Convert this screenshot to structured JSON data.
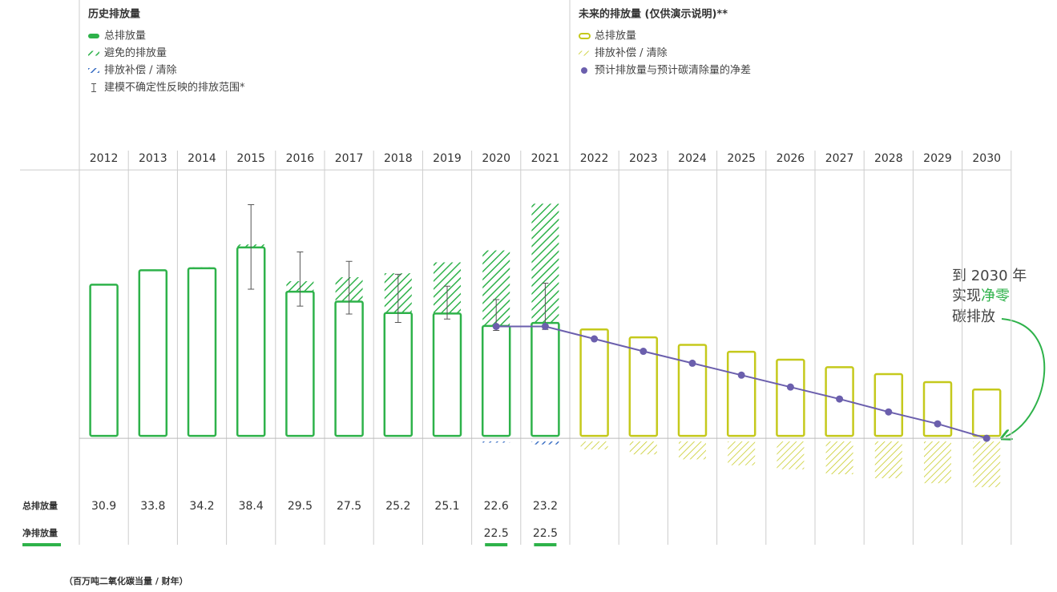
{
  "chart_data": {
    "type": "bar",
    "categories": [
      "2012",
      "2013",
      "2014",
      "2015",
      "2016",
      "2017",
      "2018",
      "2019",
      "2020",
      "2021",
      "2022",
      "2023",
      "2024",
      "2025",
      "2026",
      "2027",
      "2028",
      "2029",
      "2030"
    ],
    "ylim": [
      -10,
      54
    ],
    "legend_groups": [
      {
        "title": "历史排放量",
        "series": [
          0,
          1,
          2,
          3
        ]
      },
      {
        "title": "未来的排放量 (仅供演示说明)**",
        "series": [
          4,
          5,
          6
        ]
      }
    ],
    "series": [
      {
        "name": "总排放量",
        "color": "#2eb24a",
        "mark": "outline",
        "values": [
          30.9,
          33.8,
          34.2,
          38.4,
          29.5,
          27.5,
          25.2,
          25.1,
          22.6,
          23.2,
          null,
          null,
          null,
          null,
          null,
          null,
          null,
          null,
          null
        ]
      },
      {
        "name": "避免的排放量",
        "color": "#2eb24a",
        "mark": "hatch-up",
        "values": [
          0.1,
          0.1,
          0.2,
          0.6,
          2.1,
          4.9,
          8.0,
          10.3,
          15.2,
          24.0,
          null,
          null,
          null,
          null,
          null,
          null,
          null,
          null,
          null
        ]
      },
      {
        "name": "排放补偿 / 清除",
        "color": "#3a6fc4",
        "mark": "hatch-down",
        "values": [
          null,
          null,
          null,
          null,
          null,
          null,
          null,
          null,
          0.1,
          0.6,
          null,
          null,
          null,
          null,
          null,
          null,
          null,
          null,
          null
        ]
      },
      {
        "name": "建模不确定性反映的排放范围*",
        "color": "#555555",
        "mark": "range",
        "low": [
          null,
          null,
          null,
          30.0,
          26.6,
          25.0,
          23.3,
          24.0,
          21.7,
          21.9,
          null,
          null,
          null,
          null,
          null,
          null,
          null,
          null,
          null
        ],
        "high": [
          null,
          null,
          null,
          47.0,
          37.5,
          35.6,
          33.0,
          30.6,
          27.9,
          31.2,
          null,
          null,
          null,
          null,
          null,
          null,
          null,
          null,
          null
        ]
      },
      {
        "name": "总排放量",
        "color": "#c5c91c",
        "mark": "outline",
        "values": [
          null,
          null,
          null,
          null,
          null,
          null,
          null,
          null,
          null,
          null,
          21.9,
          20.3,
          18.8,
          17.4,
          15.8,
          14.3,
          12.9,
          11.3,
          9.8
        ]
      },
      {
        "name": "排放补偿 / 清除",
        "color": "#c5c91c",
        "mark": "hatch-down",
        "values": [
          null,
          null,
          null,
          null,
          null,
          null,
          null,
          null,
          null,
          null,
          1.6,
          2.6,
          3.6,
          4.8,
          5.6,
          6.6,
          7.4,
          8.4,
          9.2
        ]
      },
      {
        "name": "预计排放量与预计碳清除量的净差",
        "color": "#6b5fad",
        "mark": "line",
        "values": [
          null,
          null,
          null,
          null,
          null,
          null,
          null,
          null,
          22.5,
          22.5,
          20.0,
          17.5,
          15.1,
          12.7,
          10.3,
          7.9,
          5.3,
          2.9,
          0
        ]
      }
    ],
    "row_labels": [
      "总排放量",
      "净排放量"
    ],
    "annotation": [
      "到 2030 年",
      "实现",
      "净零",
      "碳排放"
    ],
    "unit_note": "（百万吨二氧化碳当量 / 财年）"
  }
}
